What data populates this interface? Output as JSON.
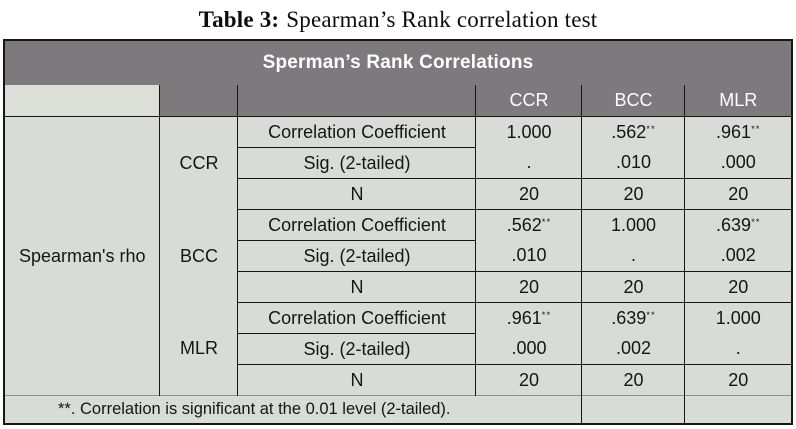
{
  "title": {
    "label": "Table 3:",
    "text": "Spearman’s Rank correlation test"
  },
  "table": {
    "header": "Sperman’s Rank Correlations",
    "row_label": "Spearman's rho",
    "columns": [
      "CCR",
      "BCC",
      "MLR"
    ],
    "groups": [
      {
        "label": "CCR",
        "rows": [
          {
            "stat": "Correlation Coefficient",
            "values": [
              "1.000",
              ".562",
              ".961"
            ],
            "sups": [
              "",
              "**",
              "**"
            ]
          },
          {
            "stat": "Sig. (2-tailed)",
            "values": [
              ".",
              ".010",
              ".000"
            ],
            "sups": [
              "",
              "",
              ""
            ]
          },
          {
            "stat": "N",
            "values": [
              "20",
              "20",
              "20"
            ],
            "sups": [
              "",
              "",
              ""
            ]
          }
        ]
      },
      {
        "label": "BCC",
        "rows": [
          {
            "stat": "Correlation Coefficient",
            "values": [
              ".562",
              "1.000",
              ".639"
            ],
            "sups": [
              "**",
              "",
              "**"
            ]
          },
          {
            "stat": "Sig. (2-tailed)",
            "values": [
              ".010",
              ".",
              ".002"
            ],
            "sups": [
              "",
              "",
              ""
            ]
          },
          {
            "stat": "N",
            "values": [
              "20",
              "20",
              "20"
            ],
            "sups": [
              "",
              "",
              ""
            ]
          }
        ]
      },
      {
        "label": "MLR",
        "rows": [
          {
            "stat": "Correlation Coefficient",
            "values": [
              ".961",
              ".639",
              "1.000"
            ],
            "sups": [
              "**",
              "**",
              ""
            ]
          },
          {
            "stat": "Sig. (2-tailed)",
            "values": [
              ".000",
              ".002",
              "."
            ],
            "sups": [
              "",
              "",
              ""
            ]
          },
          {
            "stat": "N",
            "values": [
              "20",
              "20",
              "20"
            ],
            "sups": [
              "",
              "",
              ""
            ]
          }
        ]
      }
    ],
    "footnote": "**. Correlation is significant at the 0.01 level (2-tailed).",
    "colors": {
      "header_bg": "#7d797d",
      "header_text": "#ffffff",
      "body_bg": "#d9dcd6",
      "corner_bg": "#dcdfd8",
      "border": "#161616"
    }
  }
}
